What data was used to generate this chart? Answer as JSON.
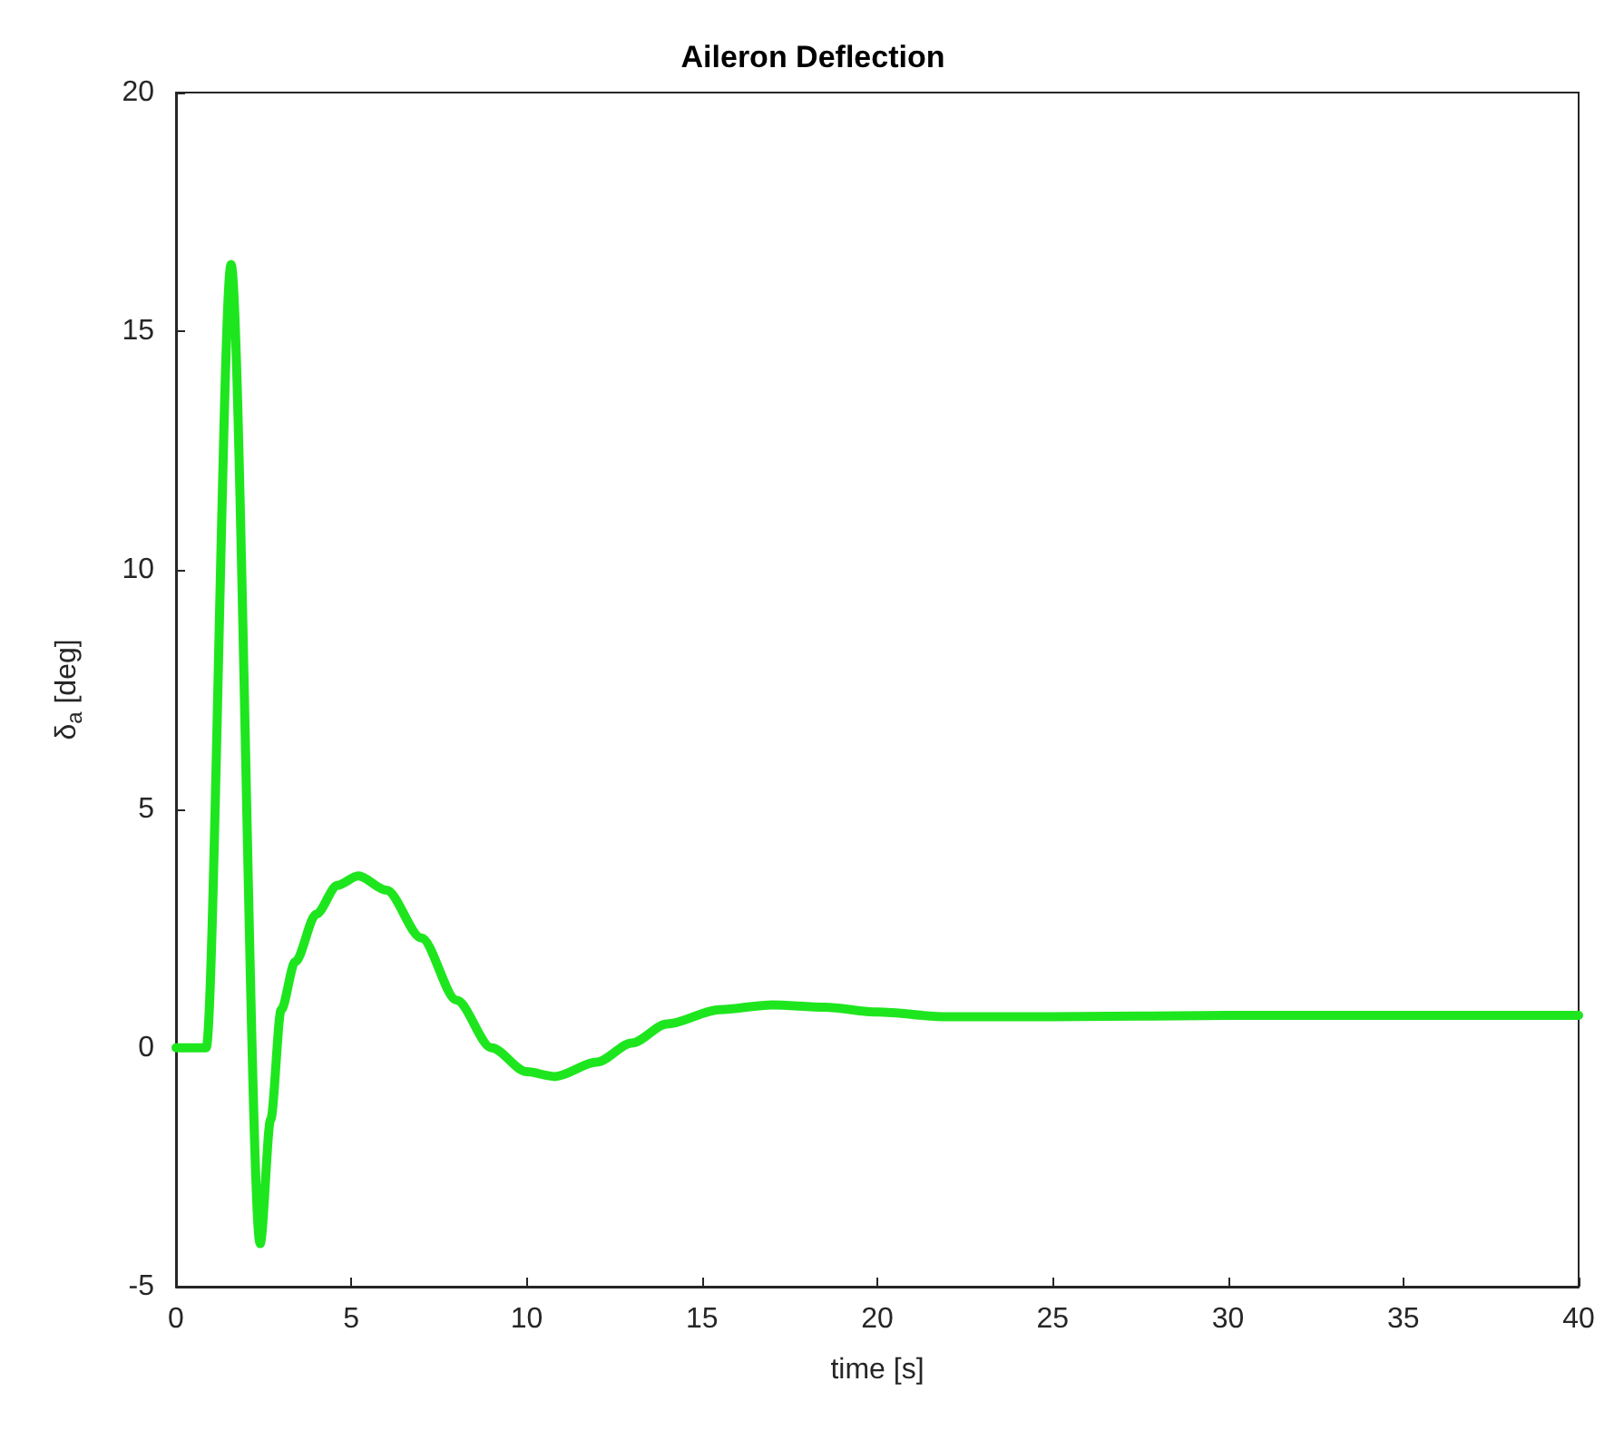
{
  "chart_data": {
    "type": "line",
    "title": "Aileron Deflection",
    "xlabel": "time [s]",
    "ylabel": "δ$_{a}$ [deg]",
    "x": [
      0,
      0.86,
      1.57,
      2.4,
      2.7,
      3.0,
      3.4,
      4.0,
      4.6,
      5.2,
      6.0,
      7.0,
      8.0,
      9.0,
      10.0,
      10.8,
      12.0,
      13.0,
      14.0,
      15.5,
      17.0,
      18.5,
      20.0,
      22.0,
      25.0,
      30.0,
      35.0,
      40.0
    ],
    "series": [
      {
        "color": "#1ee61e",
        "values": [
          0,
          0,
          16.4,
          -4.1,
          -1.5,
          0.8,
          1.8,
          2.8,
          3.4,
          3.6,
          3.3,
          2.3,
          1.0,
          0,
          -0.5,
          -0.6,
          -0.3,
          0.1,
          0.5,
          0.8,
          0.9,
          0.85,
          0.75,
          0.65,
          0.65,
          0.68,
          0.68,
          0.68
        ]
      }
    ],
    "xlim": [
      0,
      40
    ],
    "xticks": [
      0,
      5,
      10,
      15,
      20,
      25,
      30,
      35,
      40
    ],
    "ylim": [
      -5,
      20
    ],
    "yticks": [
      -5,
      0,
      5,
      10,
      15,
      20
    ],
    "grid": false,
    "marker": "none",
    "line_style": "solid"
  }
}
